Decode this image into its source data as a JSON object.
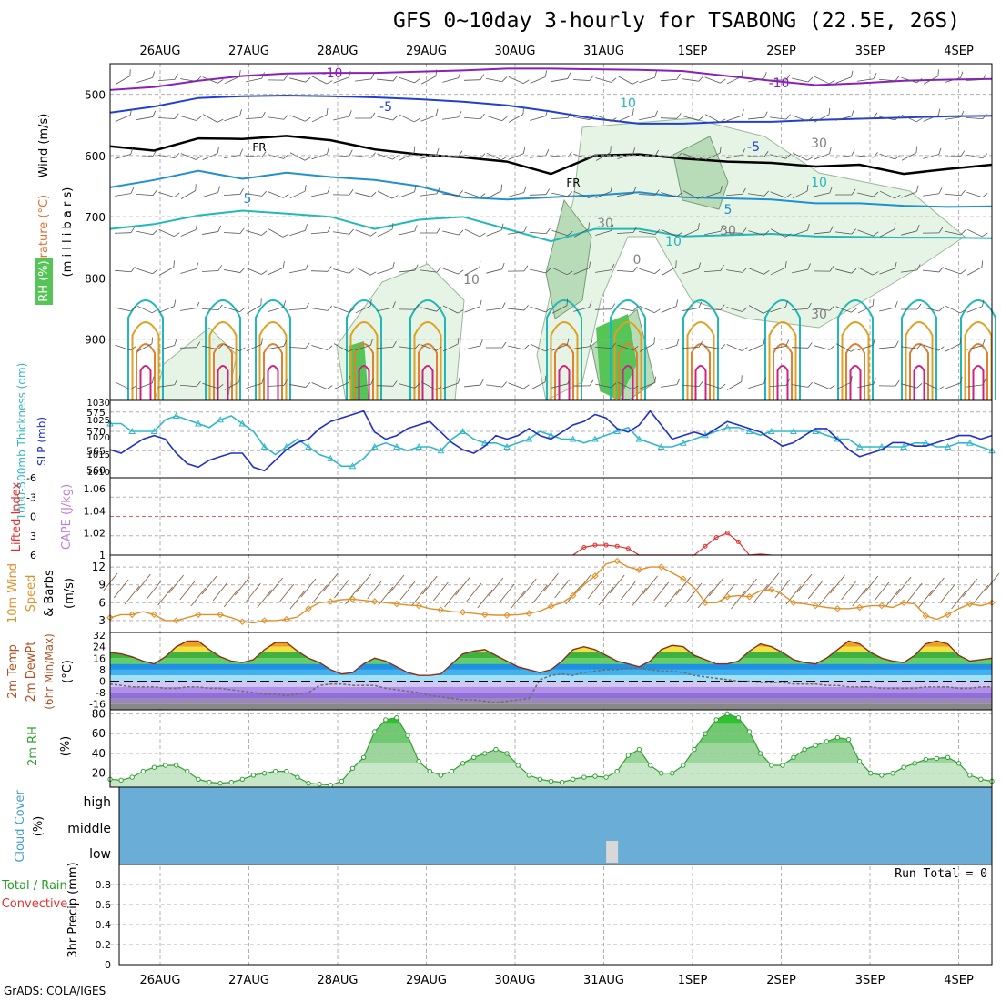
{
  "title": "GFS 0~10day 3-hourly for TSABONG (22.5E, 26S)",
  "credit": "GrADS: COLA/IGES",
  "colors": {
    "temperature_label": "#e07030",
    "wind_label": "#000000",
    "rh_label": "#20a020",
    "rh_fill_light": "#e6f4e6",
    "rh_fill_mid": "#b8dcb8",
    "rh_fill_dark": "#56c456",
    "slp": "#2030c8",
    "thickness": "#30b8c8",
    "cape": "#c080d0",
    "lifted_index": "#e03030",
    "wind10m": "#e0902a",
    "temp2m_warm": "#e85020",
    "dewpt": "#707070",
    "rh2m": "#30a030",
    "cloud": "#6aaed8",
    "cloud_gap": "#d8d8d8",
    "grid": "#b0b0b0"
  },
  "chart_data": [
    {
      "panel": "upper_air",
      "type": "contour",
      "ylabel_parts": [
        "Temperature (°C)",
        "Wind (m/s)"
      ],
      "ylabel_rh": "RH (%)",
      "ylabel_units": "(m i l l i b a r s)",
      "dates": [
        "26AUG",
        "27AUG",
        "28AUG",
        "29AUG",
        "30AUG",
        "31AUG",
        "1SEP",
        "2SEP",
        "3SEP",
        "4SEP"
      ],
      "y_ticks": [
        "500",
        "600",
        "700",
        "800",
        "900"
      ],
      "ylim": [
        450,
        1000
      ],
      "contour_labels": [
        "-10",
        "-10",
        "-5",
        "-5",
        "5",
        "5",
        "10",
        "FR",
        "FR",
        "10",
        "10",
        "30",
        "30",
        "30",
        "10",
        "0",
        "30"
      ],
      "temperature_levels": [
        {
          "level": -10,
          "p": [
            493,
            488,
            478,
            470,
            466,
            465,
            465,
            463,
            461,
            458,
            458,
            459,
            460,
            462,
            470,
            478,
            485,
            482,
            478,
            476,
            475
          ]
        },
        {
          "level": -5,
          "p": [
            530,
            520,
            506,
            503,
            502,
            503,
            505,
            508,
            512,
            518,
            528,
            540,
            548,
            548,
            545,
            545,
            542,
            540,
            538,
            536,
            535
          ]
        },
        {
          "level": 0,
          "p": [
            585,
            592,
            572,
            573,
            568,
            575,
            590,
            598,
            603,
            610,
            630,
            600,
            598,
            605,
            610,
            612,
            618,
            615,
            630,
            622,
            615
          ]
        },
        {
          "level": 5,
          "p": [
            652,
            640,
            625,
            638,
            628,
            635,
            640,
            650,
            668,
            672,
            668,
            665,
            660,
            668,
            670,
            672,
            678,
            678,
            682,
            684,
            683
          ]
        },
        {
          "level": 10,
          "p": [
            720,
            712,
            698,
            690,
            695,
            700,
            720,
            705,
            700,
            720,
            740,
            720,
            720,
            732,
            730,
            728,
            732,
            733,
            734,
            734,
            735
          ]
        }
      ]
    },
    {
      "panel": "thickness_slp",
      "type": "line",
      "ylabel_left": "1000-500mb Thickness (dm)",
      "ylabel_right": "SLP (mb)",
      "y_ticks_left": [
        "575",
        "570",
        "565",
        "560"
      ],
      "y_ticks_right": [
        "1030",
        "1025",
        "1020",
        "1015",
        "1010"
      ],
      "series": [
        {
          "name": "1000-500mb Thickness (dm)",
          "values": [
            572,
            572,
            570,
            570,
            570,
            573,
            574,
            573,
            572,
            571,
            573,
            574,
            572,
            570,
            566,
            564,
            566,
            568,
            566,
            564,
            563,
            561,
            561,
            563,
            566,
            567,
            566,
            565,
            566,
            566,
            565,
            568,
            570,
            568,
            567,
            567,
            566,
            567,
            568,
            570,
            569,
            568,
            568,
            567,
            568,
            569,
            570,
            571,
            568,
            567,
            566,
            566,
            567,
            568,
            569,
            570,
            571,
            571,
            570,
            569,
            570,
            570,
            570,
            570,
            570,
            569,
            568,
            568,
            566,
            566,
            566,
            566,
            566,
            567,
            567,
            566,
            566,
            567,
            567,
            566,
            565
          ]
        },
        {
          "name": "SLP (mb)",
          "values": [
            1017,
            1016,
            1018,
            1020,
            1021,
            1020,
            1016,
            1013,
            1012,
            1014,
            1015,
            1016,
            1016,
            1012,
            1011,
            1014,
            1017,
            1019,
            1020,
            1023,
            1025,
            1026,
            1027,
            1028,
            1022,
            1020,
            1021,
            1023,
            1024,
            1025,
            1022,
            1019,
            1017,
            1016,
            1018,
            1021,
            1020,
            1021,
            1023,
            1021,
            1020,
            1022,
            1024,
            1025,
            1027,
            1026,
            1023,
            1022,
            1024,
            1028,
            1024,
            1020,
            1021,
            1022,
            1021,
            1023,
            1025,
            1024,
            1023,
            1022,
            1020,
            1018,
            1019,
            1021,
            1023,
            1023,
            1020,
            1017,
            1015,
            1016,
            1017,
            1019,
            1019,
            1018,
            1018,
            1019,
            1020,
            1021,
            1021,
            1020,
            1021
          ]
        }
      ]
    },
    {
      "panel": "cape_li",
      "type": "line",
      "ylabel_left": "Lifted Index",
      "ylabel_right": "CAPE (J/kg)",
      "y_ticks_left": [
        "-6",
        "-3",
        "0",
        "3",
        "6"
      ],
      "y_ticks_right": [
        "1.06",
        "1.04",
        "1.02",
        "1"
      ],
      "series": [
        {
          "name": "CAPE (J/kg)",
          "x": [
            42,
            43,
            44,
            45,
            46,
            47,
            48,
            49,
            50,
            51,
            52,
            53,
            54,
            55,
            56,
            57,
            58,
            59,
            60
          ],
          "values": [
            1,
            1.007,
            1.009,
            1.009,
            1.008,
            1.006,
            1.0,
            1.0,
            1.0,
            1.0,
            1.0,
            1.0,
            1.008,
            1.016,
            1.02,
            1.012,
            1.0,
            1.001,
            1.0
          ]
        }
      ]
    },
    {
      "panel": "wind10m",
      "type": "line",
      "ylabel": "10m Wind Speed & Barbs (m/s)",
      "y_ticks": [
        "12",
        "9",
        "6",
        "3"
      ],
      "series": [
        {
          "name": "10m Wind Speed",
          "values": [
            3.5,
            4,
            4,
            4.5,
            4,
            3,
            3,
            3.5,
            4,
            4,
            4,
            3.5,
            2.8,
            2.6,
            3,
            3,
            3.2,
            3.6,
            5,
            6,
            6.2,
            6.5,
            6.6,
            6.4,
            6.2,
            6.0,
            5.8,
            5.6,
            5.5,
            5,
            4.8,
            4.5,
            4.4,
            4.2,
            4.0,
            3.9,
            3.9,
            4.0,
            4.2,
            4.6,
            5.4,
            6,
            7.2,
            9,
            10.5,
            12.5,
            13,
            12,
            11.5,
            12,
            12,
            11,
            10,
            8.5,
            6,
            6,
            7,
            7.2,
            7,
            8,
            8.2,
            7.4,
            6,
            5.8,
            5.5,
            5.2,
            5,
            5,
            5.2,
            5.5,
            5.5,
            5.2,
            6,
            5.8,
            3.8,
            3.2,
            4,
            5,
            5.8,
            5.5,
            6
          ]
        }
      ]
    },
    {
      "panel": "temp2m",
      "type": "area",
      "ylabel": "2m Temp 2m DewPt (6hr Min/Max) (°C)",
      "y_ticks": [
        "32",
        "24",
        "16",
        "8",
        "0",
        "-8",
        "-16"
      ],
      "series": [
        {
          "name": "2m Temp",
          "values": [
            20,
            19,
            17,
            14,
            12,
            17,
            24,
            28,
            28,
            22,
            17,
            14,
            13,
            15,
            22,
            27,
            27,
            21,
            16,
            13,
            8,
            5,
            6,
            12,
            16,
            14,
            10,
            6,
            4,
            4,
            5,
            12,
            19,
            21,
            22,
            18,
            14,
            10,
            8,
            6,
            8,
            14,
            22,
            24,
            22,
            18,
            14,
            12,
            10,
            14,
            22,
            25,
            24,
            18,
            15,
            12,
            12,
            14,
            21,
            26,
            24,
            20,
            15,
            13,
            12,
            16,
            22,
            28,
            26,
            20,
            16,
            14,
            13,
            18,
            26,
            28,
            26,
            18,
            14,
            15,
            16
          ]
        },
        {
          "name": "2m DewPt",
          "values": [
            -2,
            -3,
            -4,
            -4,
            -4,
            -5,
            -5,
            -4,
            -4,
            -5,
            -5,
            -6,
            -7,
            -8,
            -9,
            -9,
            -10,
            -9,
            -8,
            -3,
            -2,
            -2,
            -3,
            -3,
            -3,
            -5,
            -6,
            -7,
            -8,
            -10,
            -11,
            -12,
            -13,
            -13,
            -14,
            -15,
            -14,
            -13,
            -12,
            1,
            4,
            5,
            4,
            6,
            7,
            8,
            8,
            9,
            9,
            8,
            7,
            7,
            6,
            4,
            3,
            2,
            1,
            0,
            0,
            -1,
            -1,
            -1,
            -2,
            -2,
            -2,
            -3,
            -3,
            -4,
            -4,
            -4,
            -5,
            -5,
            -5,
            -5,
            -4,
            -4,
            -4,
            -5,
            -5,
            -4,
            -4
          ]
        }
      ]
    },
    {
      "panel": "rh2m",
      "type": "area",
      "ylabel": "2m RH (%)",
      "y_ticks": [
        "80",
        "60",
        "40",
        "20"
      ],
      "series": [
        {
          "name": "2m RH",
          "values": [
            14,
            13,
            16,
            22,
            26,
            28,
            28,
            22,
            14,
            11,
            10,
            11,
            14,
            18,
            20,
            22,
            22,
            16,
            10,
            9,
            8,
            12,
            25,
            36,
            62,
            74,
            76,
            58,
            32,
            22,
            18,
            22,
            30,
            36,
            40,
            44,
            40,
            28,
            18,
            14,
            12,
            11,
            14,
            16,
            17,
            16,
            22,
            38,
            44,
            28,
            20,
            20,
            28,
            44,
            60,
            74,
            80,
            76,
            62,
            40,
            28,
            28,
            36,
            44,
            48,
            52,
            56,
            54,
            32,
            20,
            18,
            20,
            26,
            30,
            34,
            35,
            36,
            30,
            18,
            14,
            12
          ]
        }
      ]
    },
    {
      "panel": "cloud_cover",
      "type": "bar",
      "ylabel": "Cloud Cover (%)",
      "y_ticks": [
        "high",
        "middle",
        "low"
      ],
      "values_high": 100,
      "values_middle": 100,
      "values_low": 100,
      "low_gap_x": 45.5
    },
    {
      "panel": "precip",
      "type": "bar",
      "ylabel": "3hr Precip (mm)",
      "ylabel_total": "Total / Rain",
      "ylabel_convective": "Convective",
      "run_total": "Run Total = 0",
      "y_ticks": [
        "0.8",
        "0.6",
        "0.4",
        "0.2",
        "0"
      ],
      "ylim": [
        0,
        1
      ],
      "values": []
    }
  ]
}
